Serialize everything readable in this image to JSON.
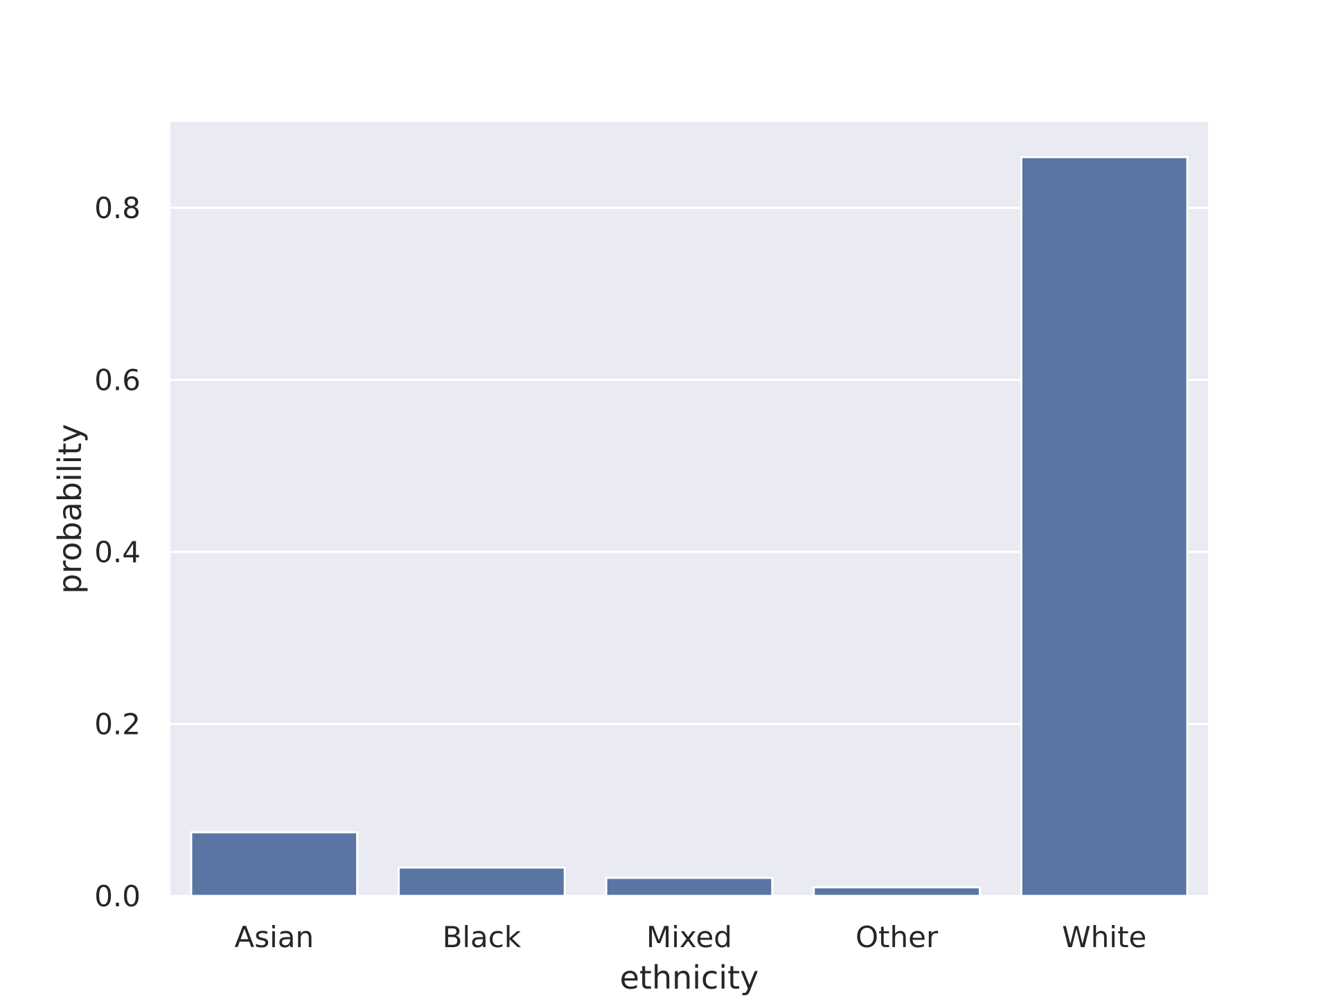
{
  "chart_data": {
    "type": "bar",
    "title": "",
    "xlabel": "ethnicity",
    "ylabel": "probability",
    "categories": [
      "Asian",
      "Black",
      "Mixed",
      "Other",
      "White"
    ],
    "values": [
      0.074,
      0.033,
      0.021,
      0.01,
      0.859
    ],
    "ylim": [
      0,
      0.9
    ],
    "yticks": [
      0.0,
      0.2,
      0.4,
      0.6,
      0.8
    ],
    "ytick_labels": [
      "0.0",
      "0.2",
      "0.4",
      "0.6",
      "0.8"
    ],
    "grid": true,
    "legend": "none",
    "colors": {
      "bar": "#5975a4",
      "plot_background": "#eaeaf2",
      "grid": "#ffffff",
      "text": "#262626"
    }
  }
}
